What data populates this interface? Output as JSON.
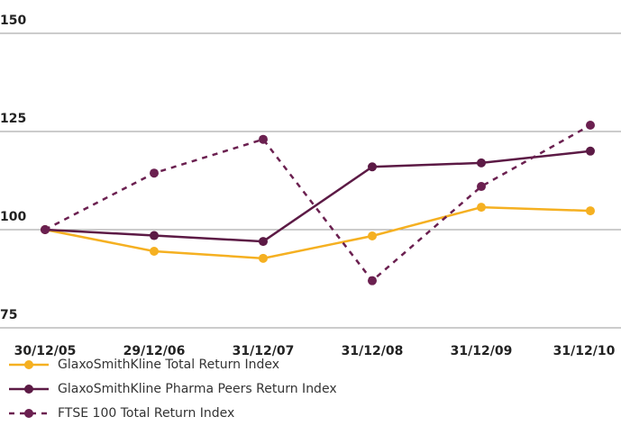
{
  "chart_data": {
    "type": "line",
    "categories": [
      "30/12/05",
      "29/12/06",
      "31/12/07",
      "31/12/08",
      "31/12/09",
      "31/12/10"
    ],
    "series": [
      {
        "name": "GlaxoSmithKline Total Return Index",
        "color": "#f5b021",
        "linestyle": "solid",
        "values": [
          100,
          94.5,
          92.7,
          98.4,
          105.7,
          104.8
        ]
      },
      {
        "name": "GlaxoSmithKline Pharma Peers Return Index",
        "color": "#5c1a45",
        "linestyle": "solid",
        "values": [
          100,
          98.5,
          97,
          116,
          117,
          120
        ]
      },
      {
        "name": "FTSE 100 Total Return Index",
        "color": "#6b2050",
        "linestyle": "dashed",
        "values": [
          100,
          114.4,
          123,
          87,
          111,
          126.6
        ]
      }
    ],
    "ylim": [
      75,
      150
    ],
    "yticks": [
      75,
      100,
      125,
      150
    ],
    "grid": true
  }
}
